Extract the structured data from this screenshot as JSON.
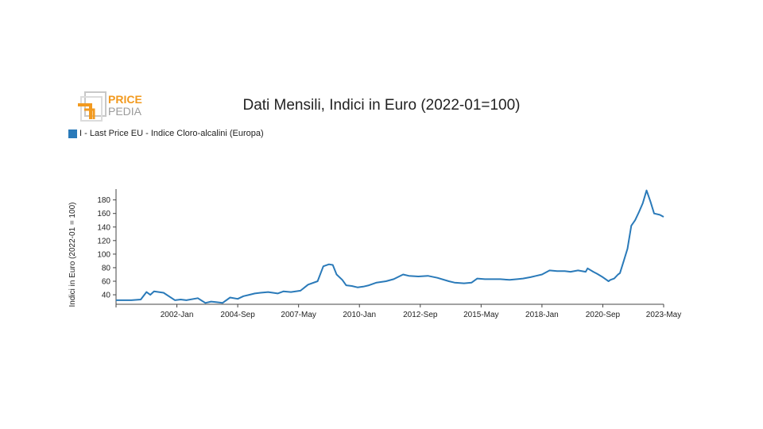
{
  "logo": {
    "line1": "PRICE",
    "line2": "PEDIA"
  },
  "colors": {
    "series": "#2a7ab9",
    "logo_orange": "#f29a1f",
    "logo_gray": "#9b9b9b",
    "axis": "#444444"
  },
  "chart_data": {
    "type": "line",
    "title": "Dati Mensili, Indici in Euro (2022-01=100)",
    "ylabel": "Indici in Euro (2022-01 = 100)",
    "xlabel": "",
    "ylim": [
      26,
      196
    ],
    "yticks": [
      40,
      60,
      80,
      100,
      120,
      140,
      160,
      180
    ],
    "xlim": [
      "1999-05",
      "2023-05"
    ],
    "xticks": [
      "2002-Jan",
      "2004-Sep",
      "2007-May",
      "2010-Jan",
      "2012-Sep",
      "2015-May",
      "2018-Jan",
      "2020-Sep",
      "2023-May"
    ],
    "grid": false,
    "legend_position": "top-left",
    "series": [
      {
        "name": "I - Last Price EU - Indice Cloro-alcalini (Europa)",
        "x": [
          "1999-05",
          "2000-01",
          "2000-06",
          "2000-09",
          "2000-11",
          "2001-01",
          "2001-06",
          "2001-12",
          "2002-03",
          "2002-06",
          "2002-12",
          "2003-04",
          "2003-07",
          "2003-10",
          "2004-01",
          "2004-05",
          "2004-09",
          "2004-12",
          "2005-03",
          "2005-06",
          "2005-09",
          "2006-01",
          "2006-06",
          "2006-09",
          "2007-01",
          "2007-06",
          "2007-10",
          "2008-03",
          "2008-06",
          "2008-09",
          "2008-11",
          "2009-01",
          "2009-04",
          "2009-06",
          "2009-09",
          "2009-12",
          "2010-03",
          "2010-06",
          "2010-10",
          "2011-03",
          "2011-07",
          "2011-12",
          "2012-03",
          "2012-08",
          "2013-01",
          "2013-06",
          "2013-12",
          "2014-03",
          "2014-08",
          "2014-12",
          "2015-03",
          "2015-07",
          "2015-10",
          "2016-03",
          "2016-08",
          "2016-12",
          "2017-03",
          "2017-07",
          "2017-10",
          "2018-01",
          "2018-05",
          "2018-09",
          "2019-01",
          "2019-04",
          "2019-08",
          "2019-12",
          "2020-01",
          "2020-04",
          "2020-06",
          "2020-09",
          "2020-12",
          "2021-01",
          "2021-03",
          "2021-05",
          "2021-06",
          "2021-08",
          "2021-10",
          "2021-12",
          "2022-02",
          "2022-04",
          "2022-06",
          "2022-08",
          "2022-10",
          "2022-12",
          "2023-03",
          "2023-05"
        ],
        "values": [
          32,
          32,
          33,
          44,
          40,
          45,
          43,
          32,
          33,
          32,
          35,
          28,
          30,
          29,
          28,
          36,
          34,
          38,
          40,
          42,
          43,
          44,
          42,
          45,
          44,
          46,
          55,
          60,
          82,
          85,
          84,
          70,
          62,
          54,
          53,
          51,
          52,
          54,
          58,
          60,
          63,
          70,
          68,
          67,
          68,
          65,
          60,
          58,
          57,
          58,
          64,
          63,
          63,
          63,
          62,
          63,
          64,
          66,
          68,
          70,
          76,
          75,
          75,
          74,
          76,
          74,
          79,
          74,
          71,
          66,
          60,
          62,
          64,
          70,
          72,
          90,
          108,
          142,
          150,
          162,
          175,
          194,
          178,
          160,
          158,
          155
        ]
      }
    ]
  }
}
